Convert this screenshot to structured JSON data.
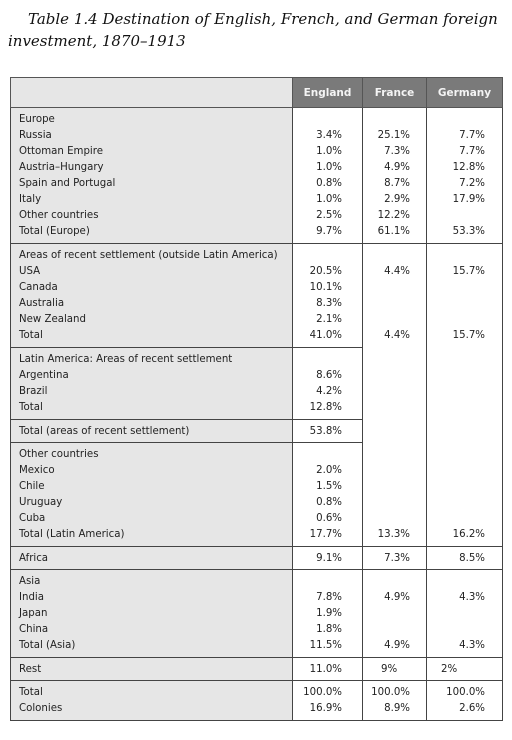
{
  "caption": {
    "line1": "Table 1.4 Destination of English, French, and German foreign",
    "line2": "investment, 1870–1913"
  },
  "table": {
    "headers": {
      "label": "",
      "england": "England",
      "france": "France",
      "germany": "Germany"
    },
    "europe": {
      "heading": "Europe",
      "rows": [
        {
          "label": "Russia",
          "england": "3.4%",
          "france": "25.1%",
          "germany": "7.7%"
        },
        {
          "label": "Ottoman Empire",
          "england": "1.0%",
          "france": "7.3%",
          "germany": "7.7%"
        },
        {
          "label": "Austria–Hungary",
          "england": "1.0%",
          "france": "4.9%",
          "germany": "12.8%"
        },
        {
          "label": "Spain and Portugal",
          "england": "0.8%",
          "france": "8.7%",
          "germany": "7.2%"
        },
        {
          "label": "Italy",
          "england": "1.0%",
          "france": "2.9%",
          "germany": "17.9%"
        },
        {
          "label": "Other countries",
          "england": "2.5%",
          "france": "12.2%",
          "germany": ""
        },
        {
          "label": "Total (Europe)",
          "england": "9.7%",
          "france": "61.1%",
          "germany": "53.3%"
        }
      ]
    },
    "settlement": {
      "heading": "Areas of recent settlement (outside Latin America)",
      "rows": [
        {
          "label": "USA",
          "england": "20.5%",
          "france": "4.4%",
          "germany": "15.7%"
        },
        {
          "label": "Canada",
          "england": "10.1%",
          "france": "",
          "germany": ""
        },
        {
          "label": "Australia",
          "england": "8.3%",
          "france": "",
          "germany": ""
        },
        {
          "label": "New Zealand",
          "england": "2.1%",
          "france": "",
          "germany": ""
        },
        {
          "label": "Total",
          "england": "41.0%",
          "france": "4.4%",
          "germany": "15.7%"
        }
      ]
    },
    "latam_settlement": {
      "heading": "Latin America: Areas of recent settlement",
      "rows": [
        {
          "label": "Argentina",
          "england": "8.6%"
        },
        {
          "label": "Brazil",
          "england": "4.2%"
        },
        {
          "label": "Total",
          "england": "12.8%"
        }
      ]
    },
    "total_settlement": {
      "label": "Total (areas of recent settlement)",
      "england": "53.8%"
    },
    "latam_other": {
      "heading": "Other countries",
      "rows": [
        {
          "label": "Mexico",
          "england": "2.0%",
          "france": "",
          "germany": ""
        },
        {
          "label": "Chile",
          "england": "1.5%",
          "france": "",
          "germany": ""
        },
        {
          "label": "Uruguay",
          "england": "0.8%",
          "france": "",
          "germany": ""
        },
        {
          "label": "Cuba",
          "england": "0.6%",
          "france": "",
          "germany": ""
        },
        {
          "label": "Total (Latin America)",
          "england": "17.7%",
          "france": "13.3%",
          "germany": "16.2%"
        }
      ]
    },
    "africa": {
      "label": "Africa",
      "england": "9.1%",
      "france": "7.3%",
      "germany": "8.5%"
    },
    "asia": {
      "heading": "Asia",
      "rows": [
        {
          "label": "India",
          "england": "7.8%",
          "france": "4.9%",
          "germany": "4.3%"
        },
        {
          "label": "Japan",
          "england": "1.9%",
          "france": "",
          "germany": ""
        },
        {
          "label": "China",
          "england": "1.8%",
          "france": "",
          "germany": ""
        },
        {
          "label": "Total (Asia)",
          "england": "11.5%",
          "france": "4.9%",
          "germany": "4.3%"
        }
      ]
    },
    "rest": {
      "label": "Rest",
      "england": "11.0%",
      "france": "9%",
      "germany": "2%"
    },
    "totals": {
      "rows": [
        {
          "label": "Total",
          "england": "100.0%",
          "france": "100.0%",
          "germany": "100.0%"
        },
        {
          "label": "Colonies",
          "england": "16.9%",
          "france": "8.9%",
          "germany": "2.6%"
        }
      ]
    }
  }
}
